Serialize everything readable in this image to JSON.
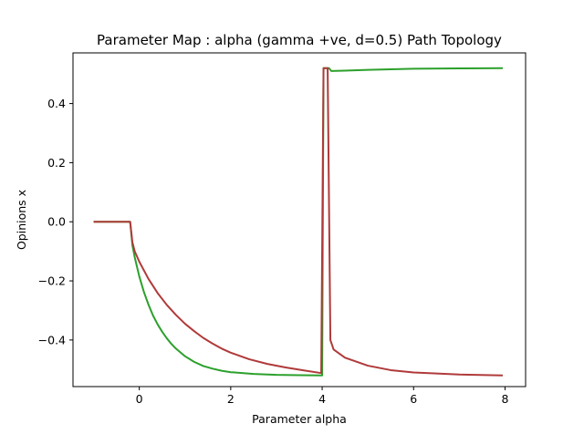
{
  "chart_data": {
    "type": "line",
    "title": "Parameter Map : alpha (gamma +ve, d=0.5) Path Topology",
    "xlabel": "Parameter alpha",
    "ylabel": "Opinions x",
    "xlim": [
      -1.45,
      8.45
    ],
    "ylim": [
      -0.5577,
      0.5715
    ],
    "xticks": [
      0,
      2,
      4,
      6,
      8
    ],
    "xtick_labels": [
      "0",
      "2",
      "4",
      "6",
      "8"
    ],
    "yticks": [
      -0.4,
      -0.2,
      0.0,
      0.2,
      0.4
    ],
    "ytick_labels": [
      "−0.4",
      "−0.2",
      "0.0",
      "0.2",
      "0.4"
    ],
    "grid": false,
    "legend": "none",
    "series": [
      {
        "color": "#2ca02c",
        "points": [
          [
            -1.0,
            0.0
          ],
          [
            -0.2,
            0.0
          ],
          [
            -0.15,
            -0.08
          ],
          [
            -0.1,
            -0.12
          ],
          [
            0.0,
            -0.185
          ],
          [
            0.1,
            -0.237
          ],
          [
            0.2,
            -0.28
          ],
          [
            0.3,
            -0.317
          ],
          [
            0.4,
            -0.347
          ],
          [
            0.5,
            -0.372
          ],
          [
            0.6,
            -0.394
          ],
          [
            0.7,
            -0.413
          ],
          [
            0.8,
            -0.429
          ],
          [
            1.0,
            -0.455
          ],
          [
            1.2,
            -0.474
          ],
          [
            1.4,
            -0.488
          ],
          [
            1.6,
            -0.497
          ],
          [
            1.8,
            -0.504
          ],
          [
            2.0,
            -0.509
          ],
          [
            2.5,
            -0.515
          ],
          [
            3.0,
            -0.518
          ],
          [
            3.5,
            -0.519
          ],
          [
            4.0,
            -0.52
          ],
          [
            4.03,
            0.52
          ],
          [
            4.15,
            0.52
          ],
          [
            4.2,
            0.51
          ],
          [
            5.0,
            0.514
          ],
          [
            6.0,
            0.518
          ],
          [
            7.0,
            0.519
          ],
          [
            7.95,
            0.52
          ]
        ]
      },
      {
        "color": "#b03a3a",
        "points": [
          [
            -1.0,
            0.0
          ],
          [
            -0.2,
            0.0
          ],
          [
            -0.15,
            -0.07
          ],
          [
            -0.1,
            -0.1
          ],
          [
            0.0,
            -0.135
          ],
          [
            0.2,
            -0.193
          ],
          [
            0.4,
            -0.241
          ],
          [
            0.6,
            -0.281
          ],
          [
            0.8,
            -0.315
          ],
          [
            1.0,
            -0.345
          ],
          [
            1.2,
            -0.37
          ],
          [
            1.4,
            -0.393
          ],
          [
            1.6,
            -0.412
          ],
          [
            1.8,
            -0.429
          ],
          [
            2.0,
            -0.443
          ],
          [
            2.4,
            -0.465
          ],
          [
            2.8,
            -0.481
          ],
          [
            3.2,
            -0.493
          ],
          [
            3.6,
            -0.503
          ],
          [
            3.98,
            -0.512
          ],
          [
            4.03,
            0.52
          ],
          [
            4.12,
            0.52
          ],
          [
            4.18,
            -0.4
          ],
          [
            4.25,
            -0.432
          ],
          [
            4.5,
            -0.46
          ],
          [
            5.0,
            -0.487
          ],
          [
            5.5,
            -0.502
          ],
          [
            6.0,
            -0.51
          ],
          [
            7.0,
            -0.517
          ],
          [
            7.95,
            -0.52
          ]
        ]
      }
    ]
  }
}
